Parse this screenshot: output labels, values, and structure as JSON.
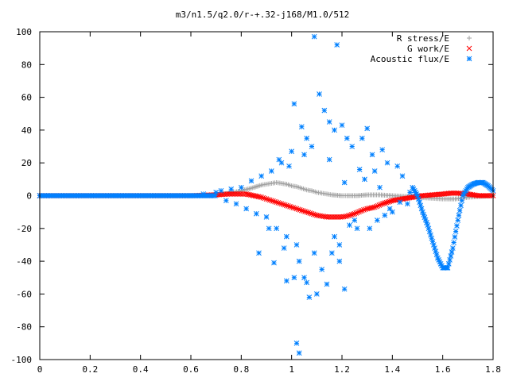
{
  "chart_data": {
    "type": "scatter",
    "title": "m3/n1.5/q2.0/r-+.32-j168/M1.0/512",
    "xlabel": "",
    "ylabel": "",
    "xlim": [
      0,
      1.8
    ],
    "ylim": [
      -100,
      100
    ],
    "x_ticks": [
      "0",
      "0.2",
      "0.4",
      "0.6",
      "0.8",
      "1",
      "1.2",
      "1.4",
      "1.6",
      "1.8"
    ],
    "y_ticks": [
      "100",
      "80",
      "60",
      "40",
      "20",
      "0",
      "-20",
      "-40",
      "-60",
      "-80",
      "-100"
    ],
    "legend_position": "top-right",
    "series": [
      {
        "name": "R stress/E",
        "marker": "+",
        "color": "#a0a0a0",
        "points": [
          [
            0.0,
            0
          ],
          [
            0.3,
            0
          ],
          [
            0.6,
            0
          ],
          [
            0.7,
            0.5
          ],
          [
            0.75,
            1.5
          ],
          [
            0.8,
            3
          ],
          [
            0.85,
            5
          ],
          [
            0.88,
            6.5
          ],
          [
            0.9,
            7
          ],
          [
            0.92,
            7.5
          ],
          [
            0.94,
            8
          ],
          [
            0.96,
            7.5
          ],
          [
            0.98,
            7
          ],
          [
            1.0,
            6
          ],
          [
            1.02,
            5.5
          ],
          [
            1.04,
            4.5
          ],
          [
            1.06,
            3.5
          ],
          [
            1.08,
            3
          ],
          [
            1.1,
            2
          ],
          [
            1.12,
            1.5
          ],
          [
            1.14,
            1
          ],
          [
            1.16,
            0.5
          ],
          [
            1.2,
            0
          ],
          [
            1.22,
            0
          ],
          [
            1.26,
            0
          ],
          [
            1.3,
            0.5
          ],
          [
            1.35,
            0.5
          ],
          [
            1.4,
            0
          ],
          [
            1.45,
            -0.5
          ],
          [
            1.5,
            -1
          ],
          [
            1.55,
            -1.5
          ],
          [
            1.6,
            -2
          ],
          [
            1.62,
            -2
          ],
          [
            1.65,
            -2
          ],
          [
            1.7,
            -1
          ],
          [
            1.75,
            -0.5
          ],
          [
            1.8,
            0
          ]
        ]
      },
      {
        "name": "G work/E",
        "marker": "x",
        "color": "#ff0000",
        "points": [
          [
            0.0,
            0
          ],
          [
            0.3,
            0
          ],
          [
            0.6,
            0
          ],
          [
            0.7,
            0.5
          ],
          [
            0.75,
            1
          ],
          [
            0.8,
            1
          ],
          [
            0.82,
            1
          ],
          [
            0.85,
            0
          ],
          [
            0.88,
            -1
          ],
          [
            0.9,
            -2
          ],
          [
            0.92,
            -3
          ],
          [
            0.94,
            -4
          ],
          [
            0.96,
            -5
          ],
          [
            0.98,
            -6
          ],
          [
            1.0,
            -7
          ],
          [
            1.02,
            -8
          ],
          [
            1.04,
            -9
          ],
          [
            1.06,
            -10
          ],
          [
            1.08,
            -11
          ],
          [
            1.1,
            -12
          ],
          [
            1.12,
            -12.5
          ],
          [
            1.14,
            -13
          ],
          [
            1.16,
            -13
          ],
          [
            1.18,
            -13
          ],
          [
            1.2,
            -13
          ],
          [
            1.22,
            -12.5
          ],
          [
            1.25,
            -11
          ],
          [
            1.28,
            -9
          ],
          [
            1.3,
            -8
          ],
          [
            1.33,
            -7
          ],
          [
            1.36,
            -5
          ],
          [
            1.4,
            -3
          ],
          [
            1.44,
            -2
          ],
          [
            1.48,
            -1
          ],
          [
            1.52,
            0
          ],
          [
            1.56,
            0.5
          ],
          [
            1.6,
            1
          ],
          [
            1.63,
            1.5
          ],
          [
            1.66,
            1.5
          ],
          [
            1.7,
            1
          ],
          [
            1.74,
            0
          ],
          [
            1.78,
            0
          ],
          [
            1.8,
            0
          ]
        ]
      },
      {
        "name": "Acoustic flux/E",
        "marker": "*",
        "color": "#0080ff",
        "points": [
          [
            0.0,
            0
          ],
          [
            0.3,
            0
          ],
          [
            0.6,
            0
          ],
          [
            0.65,
            1
          ],
          [
            0.7,
            2
          ],
          [
            0.72,
            3
          ],
          [
            0.74,
            -3
          ],
          [
            0.76,
            4
          ],
          [
            0.78,
            -5
          ],
          [
            0.8,
            5
          ],
          [
            0.82,
            -8
          ],
          [
            0.84,
            9
          ],
          [
            0.86,
            -11
          ],
          [
            0.88,
            12
          ],
          [
            0.9,
            -13
          ],
          [
            0.92,
            15
          ],
          [
            0.94,
            -20
          ],
          [
            0.96,
            20
          ],
          [
            0.98,
            -25
          ],
          [
            1.0,
            27
          ],
          [
            1.02,
            -30
          ],
          [
            1.01,
            56
          ],
          [
            1.03,
            -40
          ],
          [
            1.04,
            42
          ],
          [
            1.05,
            -50
          ],
          [
            1.06,
            35
          ],
          [
            1.07,
            -62
          ],
          [
            1.08,
            30
          ],
          [
            1.09,
            97
          ],
          [
            1.1,
            -60
          ],
          [
            1.11,
            62
          ],
          [
            1.12,
            -45
          ],
          [
            1.13,
            52
          ],
          [
            1.15,
            45
          ],
          [
            1.16,
            -35
          ],
          [
            1.17,
            40
          ],
          [
            1.18,
            92
          ],
          [
            1.19,
            -30
          ],
          [
            1.2,
            43
          ],
          [
            1.21,
            -57
          ],
          [
            1.22,
            35
          ],
          [
            1.24,
            30
          ],
          [
            1.26,
            -20
          ],
          [
            1.28,
            35
          ],
          [
            1.3,
            41
          ],
          [
            1.32,
            25
          ],
          [
            1.34,
            -15
          ],
          [
            1.36,
            28
          ],
          [
            1.38,
            20
          ],
          [
            1.4,
            -10
          ],
          [
            1.42,
            18
          ],
          [
            1.44,
            12
          ],
          [
            1.46,
            -5
          ],
          [
            1.48,
            5
          ],
          [
            1.5,
            0
          ],
          [
            1.52,
            -10
          ],
          [
            1.54,
            -18
          ],
          [
            1.56,
            -28
          ],
          [
            1.58,
            -38
          ],
          [
            1.6,
            -44
          ],
          [
            1.62,
            -44
          ],
          [
            1.64,
            -32
          ],
          [
            1.66,
            -15
          ],
          [
            1.68,
            0
          ],
          [
            1.7,
            5
          ],
          [
            1.72,
            7
          ],
          [
            1.74,
            8
          ],
          [
            1.76,
            8
          ],
          [
            1.78,
            6
          ],
          [
            1.8,
            3
          ],
          [
            0.98,
            -52
          ],
          [
            1.02,
            -90
          ],
          [
            1.03,
            -96
          ],
          [
            1.06,
            -53
          ],
          [
            1.14,
            -54
          ],
          [
            0.93,
            -41
          ],
          [
            0.87,
            -35
          ],
          [
            0.97,
            -32
          ],
          [
            1.01,
            -50
          ],
          [
            1.09,
            -35
          ],
          [
            1.17,
            -25
          ],
          [
            1.25,
            -15
          ],
          [
            1.31,
            -20
          ],
          [
            1.37,
            -12
          ],
          [
            0.91,
            -20
          ],
          [
            1.19,
            -40
          ],
          [
            1.23,
            -18
          ],
          [
            1.29,
            10
          ],
          [
            1.33,
            15
          ],
          [
            1.39,
            -8
          ],
          [
            1.43,
            -4
          ],
          [
            1.47,
            2
          ],
          [
            0.95,
            22
          ],
          [
            0.99,
            18
          ],
          [
            1.05,
            25
          ],
          [
            1.15,
            22
          ],
          [
            1.21,
            8
          ],
          [
            1.27,
            16
          ],
          [
            1.35,
            5
          ]
        ]
      }
    ]
  }
}
